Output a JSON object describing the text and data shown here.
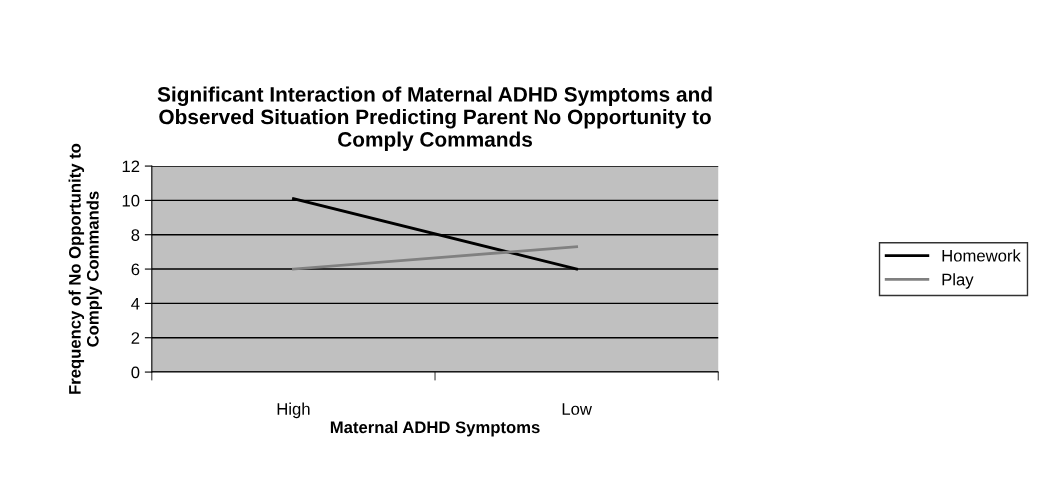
{
  "chart_data": {
    "type": "line",
    "title": "Significant Interaction of Maternal ADHD Symptoms and\nObserved Situation Predicting Parent No Opportunity to\nComply Commands",
    "xlabel": "Maternal ADHD Symptoms",
    "ylabel": "Frequency of No Opportunity to\nComply Commands",
    "categories": [
      "High",
      "Low"
    ],
    "series": [
      {
        "name": "Homework",
        "color": "#000000",
        "values": [
          10.1,
          6.0
        ]
      },
      {
        "name": "Play",
        "color": "#808080",
        "values": [
          6.0,
          7.3
        ]
      }
    ],
    "ylim": [
      0,
      12
    ],
    "yticks": [
      0,
      2,
      4,
      6,
      8,
      10,
      12
    ],
    "grid": "y",
    "legend": "right",
    "marker": "none"
  }
}
